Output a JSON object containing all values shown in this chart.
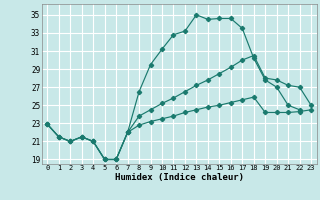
{
  "xlabel": "Humidex (Indice chaleur)",
  "background_color": "#c8e8e8",
  "grid_color": "#ffffff",
  "line_color": "#1a7a6e",
  "xlim": [
    -0.5,
    23.5
  ],
  "ylim": [
    18.5,
    36.2
  ],
  "xticks": [
    0,
    1,
    2,
    3,
    4,
    5,
    6,
    7,
    8,
    9,
    10,
    11,
    12,
    13,
    14,
    15,
    16,
    17,
    18,
    19,
    20,
    21,
    22,
    23
  ],
  "yticks": [
    19,
    21,
    23,
    25,
    27,
    29,
    31,
    33,
    35
  ],
  "series1_x": [
    0,
    1,
    2,
    3,
    4,
    5,
    6,
    7,
    8,
    9,
    10,
    11,
    12,
    13,
    14,
    15,
    16,
    17,
    18,
    19,
    20,
    21,
    22
  ],
  "series1_y": [
    22.9,
    21.5,
    21.0,
    21.5,
    21.0,
    19.0,
    19.0,
    22.0,
    26.5,
    29.5,
    31.2,
    32.8,
    33.2,
    35.0,
    34.5,
    34.6,
    34.6,
    33.5,
    30.2,
    27.8,
    27.0,
    25.0,
    24.5
  ],
  "series2_x": [
    0,
    1,
    2,
    3,
    4,
    5,
    6,
    7,
    8,
    9,
    10,
    11,
    12,
    13,
    14,
    15,
    16,
    17,
    18,
    19,
    20,
    21,
    22,
    23
  ],
  "series2_y": [
    22.9,
    21.5,
    21.0,
    21.5,
    21.0,
    19.0,
    19.0,
    22.0,
    23.8,
    24.5,
    25.2,
    25.8,
    26.5,
    27.2,
    27.8,
    28.5,
    29.2,
    30.0,
    30.5,
    28.0,
    27.8,
    27.2,
    27.0,
    25.0
  ],
  "series3_x": [
    0,
    1,
    2,
    3,
    4,
    5,
    6,
    7,
    8,
    9,
    10,
    11,
    12,
    13,
    14,
    15,
    16,
    17,
    18,
    19,
    20,
    21,
    22,
    23
  ],
  "series3_y": [
    22.9,
    21.5,
    21.0,
    21.5,
    21.0,
    19.0,
    19.0,
    22.0,
    22.8,
    23.2,
    23.5,
    23.8,
    24.2,
    24.5,
    24.8,
    25.0,
    25.3,
    25.6,
    25.9,
    24.2,
    24.2,
    24.2,
    24.3,
    24.5
  ]
}
